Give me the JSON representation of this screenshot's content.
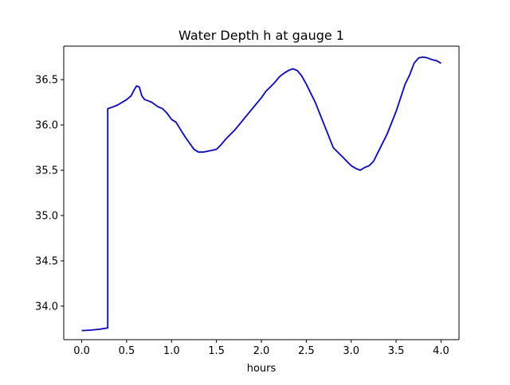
{
  "chart_data": {
    "type": "line",
    "title": "Water Depth h at gauge 1",
    "xlabel": "hours",
    "ylabel": "",
    "xlim": [
      -0.2,
      4.2
    ],
    "ylim": [
      33.63,
      36.87
    ],
    "xticks": [
      0.0,
      0.5,
      1.0,
      1.5,
      2.0,
      2.5,
      3.0,
      3.5,
      4.0
    ],
    "xtick_labels": [
      "0.0",
      "0.5",
      "1.0",
      "1.5",
      "2.0",
      "2.5",
      "3.0",
      "3.5",
      "4.0"
    ],
    "yticks": [
      34.0,
      34.5,
      35.0,
      35.5,
      36.0,
      36.5
    ],
    "ytick_labels": [
      "34.0",
      "34.5",
      "35.0",
      "35.5",
      "36.0",
      "36.5"
    ],
    "grid": false,
    "legend": "none",
    "series": [
      {
        "color": "#0000ff",
        "x": [
          0.0,
          0.1,
          0.2,
          0.29,
          0.29,
          0.35,
          0.4,
          0.45,
          0.5,
          0.55,
          0.58,
          0.61,
          0.64,
          0.67,
          0.7,
          0.73,
          0.78,
          0.85,
          0.9,
          0.95,
          1.0,
          1.05,
          1.1,
          1.15,
          1.2,
          1.25,
          1.3,
          1.35,
          1.4,
          1.45,
          1.5,
          1.55,
          1.6,
          1.7,
          1.8,
          1.9,
          2.0,
          2.05,
          2.1,
          2.15,
          2.2,
          2.25,
          2.3,
          2.35,
          2.4,
          2.45,
          2.5,
          2.6,
          2.7,
          2.8,
          2.9,
          2.95,
          3.0,
          3.05,
          3.1,
          3.15,
          3.2,
          3.25,
          3.3,
          3.4,
          3.5,
          3.6,
          3.65,
          3.7,
          3.75,
          3.8,
          3.85,
          3.9,
          3.95,
          4.0
        ],
        "y": [
          33.73,
          33.735,
          33.745,
          33.76,
          36.18,
          36.2,
          36.22,
          36.25,
          36.28,
          36.32,
          36.38,
          36.43,
          36.42,
          36.32,
          36.28,
          36.27,
          36.25,
          36.2,
          36.18,
          36.13,
          36.06,
          36.03,
          35.95,
          35.87,
          35.8,
          35.73,
          35.7,
          35.7,
          35.71,
          35.72,
          35.73,
          35.78,
          35.84,
          35.94,
          36.06,
          36.18,
          36.3,
          36.37,
          36.42,
          36.47,
          36.53,
          36.57,
          36.6,
          36.62,
          36.6,
          36.54,
          36.45,
          36.25,
          36.0,
          35.75,
          35.65,
          35.6,
          35.55,
          35.52,
          35.5,
          35.53,
          35.55,
          35.6,
          35.7,
          35.9,
          36.15,
          36.45,
          36.55,
          36.68,
          36.74,
          36.75,
          36.74,
          36.72,
          36.71,
          36.68
        ]
      }
    ]
  }
}
